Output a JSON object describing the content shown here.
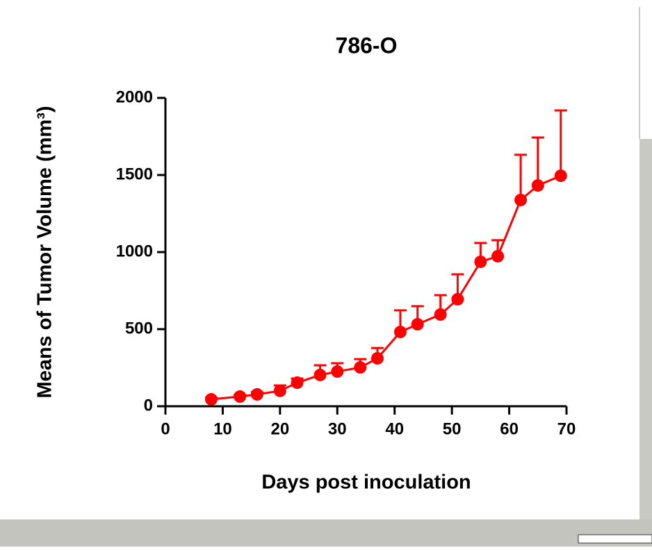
{
  "chart_data": {
    "type": "line",
    "title": "786-O",
    "x_label": "Days post inoculation",
    "y_label": "Means of Tumor Volume (mm³)",
    "x": [
      8,
      13,
      16,
      20,
      23,
      27,
      30,
      34,
      37,
      41,
      44,
      48,
      51,
      55,
      58,
      62,
      65,
      69
    ],
    "series": [
      {
        "name": "786-O",
        "color": "#ff0000",
        "values": [
          45,
          63,
          77,
          100,
          153,
          203,
          225,
          252,
          311,
          482,
          532,
          595,
          694,
          937,
          973,
          1338,
          1432,
          1495
        ],
        "errors": [
          10,
          10,
          15,
          35,
          27,
          63,
          54,
          54,
          67,
          140,
          117,
          126,
          162,
          122,
          104,
          293,
          311,
          424
        ]
      }
    ],
    "xlim": [
      0,
      70
    ],
    "xticks": [
      0,
      10,
      20,
      30,
      40,
      50,
      60,
      70
    ],
    "ylim": [
      0,
      2000
    ],
    "yticks": [
      0,
      500,
      1000,
      1500,
      2000
    ],
    "grid": false
  }
}
